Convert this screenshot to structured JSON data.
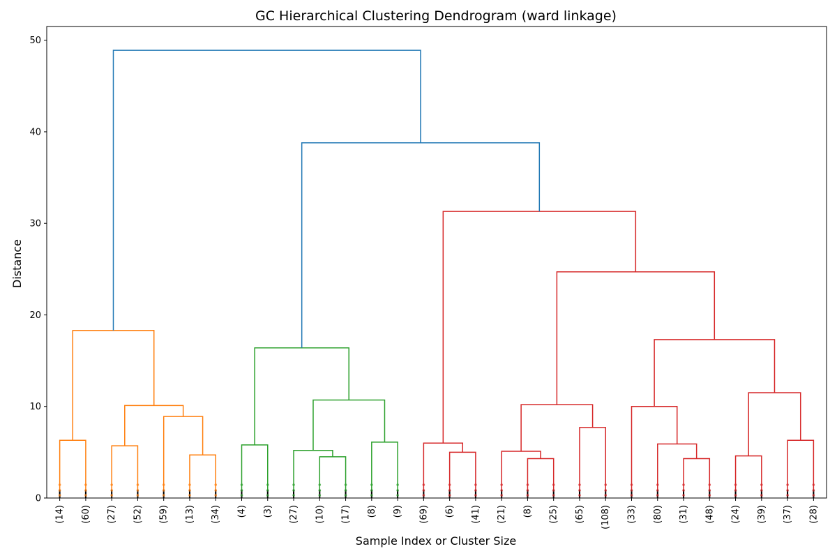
{
  "chart_data": {
    "type": "dendrogram",
    "title": "GC Hierarchical Clustering Dendrogram (ward linkage)",
    "xlabel": "Sample Index or Cluster Size",
    "ylabel": "Distance",
    "ylim": [
      0,
      51.5
    ],
    "yticks": [
      0,
      10,
      20,
      30,
      40,
      50
    ],
    "grid": false,
    "colors": {
      "root": "#1f77b4",
      "cluster_orange": "#ff7f0e",
      "cluster_green": "#2ca02c",
      "cluster_red": "#d62728"
    },
    "leaves": [
      "(14)",
      "(60)",
      "(27)",
      "(52)",
      "(59)",
      "(13)",
      "(34)",
      "(4)",
      "(3)",
      "(27)",
      "(10)",
      "(17)",
      "(8)",
      "(9)",
      "(69)",
      "(6)",
      "(41)",
      "(21)",
      "(8)",
      "(25)",
      "(65)",
      "(108)",
      "(33)",
      "(80)",
      "(31)",
      "(48)",
      "(24)",
      "(39)",
      "(37)",
      "(28)"
    ],
    "merges": [
      {
        "color": "cluster_orange",
        "left": 0,
        "right": 1,
        "height": 6.3
      },
      {
        "color": "cluster_orange",
        "left": 2,
        "right": 3,
        "height": 5.7
      },
      {
        "color": "cluster_orange",
        "left": 5,
        "right": 6,
        "height": 4.7
      },
      {
        "color": "cluster_orange",
        "left": 4,
        "right": "m2",
        "height": 8.9
      },
      {
        "color": "cluster_orange",
        "left": "m1",
        "right": "m3",
        "height": 10.1
      },
      {
        "color": "cluster_orange",
        "left": "m0",
        "right": "m4",
        "height": 18.3
      },
      {
        "color": "cluster_green",
        "left": 7,
        "right": 8,
        "height": 5.8
      },
      {
        "color": "cluster_green",
        "left": 10,
        "right": 11,
        "height": 4.5
      },
      {
        "color": "cluster_green",
        "left": 9,
        "right": "m7",
        "height": 5.2
      },
      {
        "color": "cluster_green",
        "left": 12,
        "right": 13,
        "height": 6.1
      },
      {
        "color": "cluster_green",
        "left": "m8",
        "right": "m9",
        "height": 10.7
      },
      {
        "color": "cluster_green",
        "left": "m6",
        "right": "m10",
        "height": 16.4
      },
      {
        "color": "cluster_red",
        "left": 15,
        "right": 16,
        "height": 5.0
      },
      {
        "color": "cluster_red",
        "left": 14,
        "right": "m12",
        "height": 6.0
      },
      {
        "color": "cluster_red",
        "left": 18,
        "right": 19,
        "height": 4.3
      },
      {
        "color": "cluster_red",
        "left": 17,
        "right": "m14",
        "height": 5.1
      },
      {
        "color": "cluster_red",
        "left": 20,
        "right": 21,
        "height": 7.7
      },
      {
        "color": "cluster_red",
        "left": "m15",
        "right": "m16",
        "height": 10.2
      },
      {
        "color": "cluster_red",
        "left": 24,
        "right": 25,
        "height": 4.3
      },
      {
        "color": "cluster_red",
        "left": 23,
        "right": "m18",
        "height": 5.9
      },
      {
        "color": "cluster_red",
        "left": 22,
        "right": "m19",
        "height": 10.0
      },
      {
        "color": "cluster_red",
        "left": 26,
        "right": 27,
        "height": 4.6
      },
      {
        "color": "cluster_red",
        "left": 28,
        "right": 29,
        "height": 6.3
      },
      {
        "color": "cluster_red",
        "left": "m21",
        "right": "m22",
        "height": 11.5
      },
      {
        "color": "cluster_red",
        "left": "m20",
        "right": "m23",
        "height": 17.3
      },
      {
        "color": "cluster_red",
        "left": "m17",
        "right": "m24",
        "height": 24.7
      },
      {
        "color": "cluster_red",
        "left": "m13",
        "right": "m25",
        "height": 31.3
      },
      {
        "color": "root",
        "left": "m11",
        "right": "m26",
        "height": 38.8
      },
      {
        "color": "root",
        "left": "m5",
        "right": "m27",
        "height": 48.9
      }
    ]
  }
}
